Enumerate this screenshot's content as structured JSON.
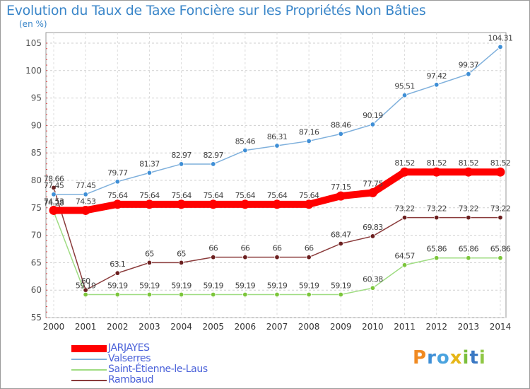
{
  "header": {
    "title": "Evolution du Taux de Taxe Foncière sur les Propriétés Non Bâties",
    "unit_label": "(en %)"
  },
  "logo": {
    "text": "Proxiti"
  },
  "chart_data": {
    "type": "line",
    "title": "Evolution du Taux de Taxe Foncière sur les Propriétés Non Bâties",
    "subtitle": "(en %)",
    "xlabel": "",
    "ylabel": "",
    "x": [
      "2000",
      "2001",
      "2002",
      "2003",
      "2004",
      "2005",
      "2006",
      "2007",
      "2008",
      "2009",
      "2010",
      "2011",
      "2012",
      "2013",
      "2014"
    ],
    "ylim": [
      55,
      105
    ],
    "yticks": [
      55,
      60,
      65,
      70,
      75,
      80,
      85,
      90,
      95,
      100,
      105
    ],
    "grid": "horizontal dashed",
    "legend_position": "bottom-left",
    "series": [
      {
        "name": "JARJAYES",
        "color": "#ff0000",
        "marker_color": "#ff0000",
        "values": [
          74.53,
          74.53,
          75.64,
          75.64,
          75.64,
          75.64,
          75.64,
          75.64,
          75.64,
          77.15,
          77.75,
          81.52,
          81.52,
          81.52,
          81.52
        ],
        "labels": [
          "74.53",
          "74.53",
          "75.64",
          "75.64",
          "75.64",
          "75.64",
          "75.64",
          "75.64",
          "75.64",
          "77.15",
          "77.75",
          "81.52",
          "81.52",
          "81.52",
          "81.52"
        ]
      },
      {
        "name": "Valserres",
        "color": "#7fb0dc",
        "marker_color": "#3f8fd6",
        "values": [
          77.45,
          77.45,
          79.77,
          81.37,
          82.97,
          82.97,
          85.46,
          86.31,
          87.16,
          88.46,
          90.19,
          95.51,
          97.42,
          99.37,
          104.31
        ],
        "labels": [
          "77.45",
          "77.45",
          "79.77",
          "81.37",
          "82.97",
          "82.97",
          "85.46",
          "86.31",
          "87.16",
          "88.46",
          "90.19",
          "95.51",
          "97.42",
          "99.37",
          "104.31"
        ]
      },
      {
        "name": "Saint-Étienne-le-Laus",
        "color": "#9fdc82",
        "marker_color": "#7cc63b",
        "values": [
          74.28,
          59.19,
          59.19,
          59.19,
          59.19,
          59.19,
          59.19,
          59.19,
          59.19,
          59.19,
          60.38,
          64.57,
          65.86,
          65.86,
          65.86
        ],
        "labels": [
          "74.28",
          "59.19",
          "59.19",
          "59.19",
          "59.19",
          "59.19",
          "59.19",
          "59.19",
          "59.19",
          "59.19",
          "60.38",
          "64.57",
          "65.86",
          "65.86",
          "65.86"
        ]
      },
      {
        "name": "Rambaud",
        "color": "#8a3b3b",
        "marker_color": "#6b1f1f",
        "values": [
          78.66,
          60,
          63.1,
          65,
          65,
          66,
          66,
          66,
          66,
          68.47,
          69.83,
          73.22,
          73.22,
          73.22,
          73.22
        ],
        "labels": [
          "78.66",
          "60",
          "63.1",
          "65",
          "65",
          "66",
          "66",
          "66",
          "66",
          "68.47",
          "69.83",
          "73.22",
          "73.22",
          "73.22",
          "73.22"
        ]
      }
    ]
  }
}
